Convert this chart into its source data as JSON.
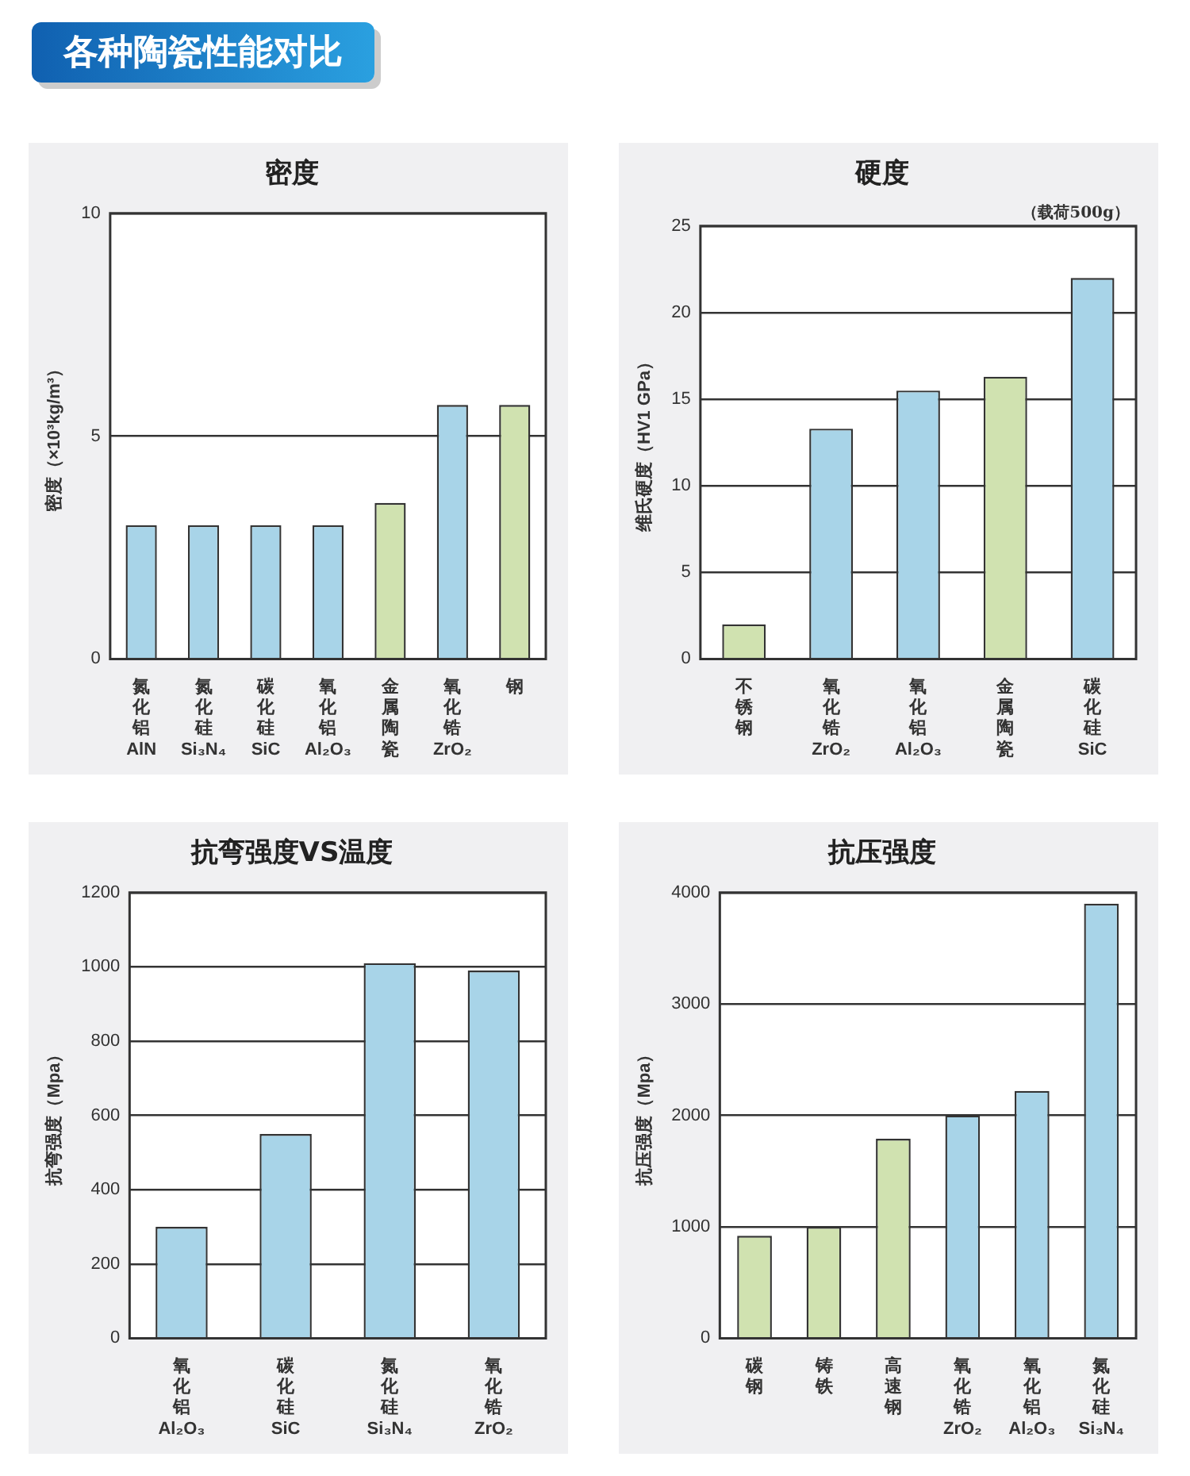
{
  "chart_data": [
    {
      "type": "other",
      "title": "各种陶瓷性能对比"
    },
    {
      "type": "bar",
      "title": "密度",
      "ylabel": "密度（×10³kg/m³）",
      "categories": [
        "氮化铝\nAlN",
        "氮化硅\nSi₃N₄",
        "碳化硅\nSiC",
        "氧化铝\nAl₂O₃",
        "金属陶瓷",
        "氧化锆\nZrO₂",
        "钢"
      ],
      "values": [
        3.0,
        3.0,
        3.0,
        3.0,
        3.5,
        5.7,
        5.7
      ],
      "colors": [
        "#a8d4e8",
        "#a8d4e8",
        "#a8d4e8",
        "#a8d4e8",
        "#d0e2b0",
        "#a8d4e8",
        "#d0e2b0"
      ],
      "ylim": [
        0,
        10
      ],
      "yticks": [
        0,
        5,
        10
      ],
      "grid": "y"
    },
    {
      "type": "bar",
      "title": "硬度",
      "ylabel": "维氏硬度（HV1 GPa）",
      "annotations": [
        "（载荷500g）"
      ],
      "categories": [
        "不锈钢",
        "氧化锆\nZrO₂",
        "氧化铝\nAl₂O₃",
        "金属陶瓷",
        "碳化硅\nSiC"
      ],
      "values": [
        2.0,
        13.3,
        15.5,
        16.3,
        22.0
      ],
      "colors": [
        "#d0e2b0",
        "#a8d4e8",
        "#a8d4e8",
        "#d0e2b0",
        "#a8d4e8"
      ],
      "ylim": [
        0,
        25
      ],
      "yticks": [
        0,
        5,
        10,
        15,
        20,
        25
      ],
      "grid": "y"
    },
    {
      "type": "bar",
      "title": "抗弯强度VS温度",
      "ylabel": "抗弯强度（Mpa）",
      "categories": [
        "氧化铝\nAl₂O₃",
        "碳化硅\nSiC",
        "氮化硅\nSi₃N₄",
        "氧化锆\nZrO₂"
      ],
      "values": [
        300,
        550,
        1010,
        990
      ],
      "colors": [
        "#a8d4e8",
        "#a8d4e8",
        "#a8d4e8",
        "#a8d4e8"
      ],
      "ylim": [
        0,
        1200
      ],
      "yticks": [
        0,
        200,
        400,
        600,
        800,
        1000,
        1200
      ],
      "grid": "y"
    },
    {
      "type": "bar",
      "title": "抗压强度",
      "ylabel": "抗压强度（Mpa）",
      "categories": [
        "碳钢",
        "铸铁",
        "高速钢",
        "氧化锆\nZrO₂",
        "氧化铝\nAl₂O₃",
        "氮化硅\nSi₃N₄"
      ],
      "values": [
        920,
        1000,
        1790,
        2000,
        2220,
        3900
      ],
      "colors": [
        "#d0e2b0",
        "#d0e2b0",
        "#d0e2b0",
        "#a8d4e8",
        "#a8d4e8",
        "#a8d4e8"
      ],
      "ylim": [
        0,
        4000
      ],
      "yticks": [
        0,
        1000,
        2000,
        3000,
        4000
      ],
      "grid": "y"
    }
  ]
}
